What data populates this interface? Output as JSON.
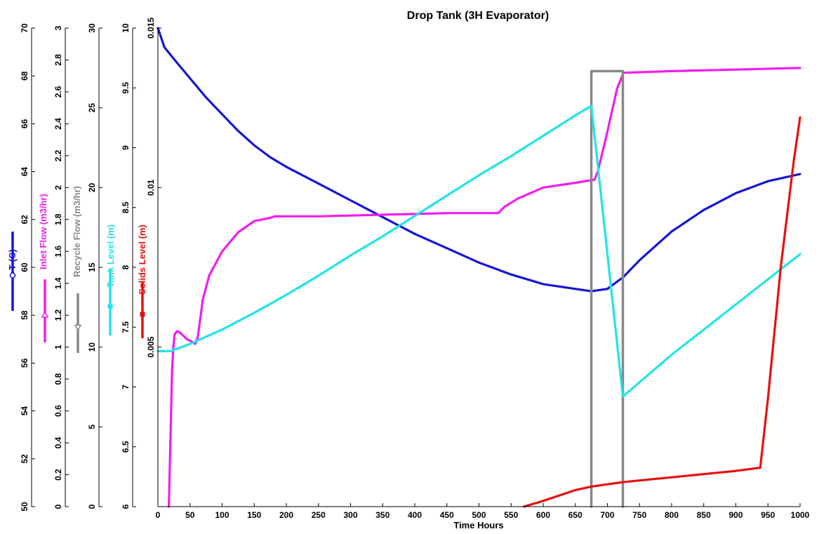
{
  "chart_data": {
    "type": "line",
    "title": "Drop Tank (3H Evaporator)",
    "xlabel": "Time Hours",
    "xlim": [
      0,
      1000
    ],
    "x_ticks": [
      0,
      50,
      100,
      150,
      200,
      250,
      300,
      350,
      400,
      450,
      500,
      550,
      600,
      650,
      700,
      750,
      800,
      850,
      900,
      950,
      1000
    ],
    "axes": [
      {
        "id": "temp",
        "label": "T (C)",
        "color": "#1515d6",
        "marker": "circle",
        "ylim": [
          50,
          70
        ],
        "ticks": [
          50,
          52,
          54,
          56,
          58,
          60,
          62,
          64,
          66,
          68,
          70
        ],
        "labels": [
          "50",
          "52",
          "54",
          "56",
          "58",
          "60",
          "62",
          "64",
          "66",
          "68",
          "70"
        ]
      },
      {
        "id": "inlet",
        "label": "Inlet Flow (m3/hr)",
        "color": "#f01df0",
        "marker": "triangle-up",
        "ylim": [
          0,
          3
        ],
        "ticks": [
          0,
          0.2,
          0.4,
          0.6,
          0.8,
          1,
          1.2,
          1.4,
          1.6,
          1.8,
          2,
          2.2,
          2.4,
          2.6,
          2.8,
          3
        ],
        "labels": [
          "0",
          "0.2",
          "0.4",
          "0.6",
          "0.8",
          "1",
          "1.2",
          "1.4",
          "1.6",
          "1.8",
          "2",
          "2.2",
          "2.4",
          "2.6",
          "2.8",
          "3"
        ]
      },
      {
        "id": "recycle",
        "label": "Recycle Flow (m3/hr)",
        "color": "#888888",
        "marker": "triangle-down",
        "ylim": [
          0,
          30
        ],
        "ticks": [
          0,
          5,
          10,
          15,
          20,
          25,
          30
        ],
        "labels": [
          "0",
          "5",
          "10",
          "15",
          "20",
          "25",
          "30"
        ]
      },
      {
        "id": "level",
        "label": "Tank Level (m)",
        "color": "#22e4e4",
        "marker": "diamond",
        "ylim": [
          6,
          10
        ],
        "ticks": [
          6,
          6.5,
          7,
          7.5,
          8,
          8.5,
          9,
          9.5,
          10
        ],
        "labels": [
          "6",
          "6.5",
          "7",
          "7.5",
          "8",
          "8.5",
          "9",
          "9.5",
          "10"
        ]
      },
      {
        "id": "solids",
        "label": "Solids Level (m)",
        "color": "#e81010",
        "marker": "square",
        "ylim": [
          0,
          0.015
        ],
        "ticks": [
          0.005,
          0.01,
          0.015
        ],
        "labels": [
          "0.005",
          "0.01",
          "0.015"
        ]
      }
    ],
    "series": [
      {
        "axis": "temp",
        "color": "#1515d6",
        "x": [
          0,
          10,
          25,
          50,
          75,
          100,
          125,
          150,
          175,
          200,
          250,
          300,
          350,
          400,
          450,
          500,
          550,
          600,
          650,
          675,
          700,
          725,
          750,
          800,
          850,
          900,
          950,
          1000
        ],
        "y": [
          70,
          69.2,
          68.7,
          67.9,
          67.1,
          66.4,
          65.7,
          65.1,
          64.6,
          64.2,
          63.5,
          62.8,
          62.1,
          61.4,
          60.8,
          60.2,
          59.7,
          59.3,
          59.1,
          59.0,
          59.1,
          59.6,
          60.3,
          61.5,
          62.4,
          63.1,
          63.6,
          63.9
        ]
      },
      {
        "axis": "inlet",
        "color": "#f01df0",
        "x": [
          17,
          20,
          22,
          24,
          26,
          30,
          35,
          40,
          45,
          50,
          55,
          58,
          62,
          70,
          80,
          100,
          125,
          150,
          175,
          182,
          250,
          350,
          450,
          530,
          540,
          560,
          600,
          650,
          680,
          685,
          700,
          715,
          725,
          800,
          900,
          1000
        ],
        "y": [
          0,
          0.5,
          0.85,
          1.0,
          1.08,
          1.1,
          1.09,
          1.07,
          1.05,
          1.04,
          1.03,
          1.02,
          1.06,
          1.3,
          1.45,
          1.6,
          1.72,
          1.79,
          1.81,
          1.82,
          1.82,
          1.83,
          1.84,
          1.84,
          1.88,
          1.93,
          2.0,
          2.03,
          2.05,
          2.1,
          2.35,
          2.62,
          2.72,
          2.73,
          2.74,
          2.75
        ]
      },
      {
        "axis": "recycle",
        "color": "#888888",
        "x": [
          675,
          675,
          724,
          724
        ],
        "y": [
          0,
          27.3,
          27.3,
          0
        ]
      },
      {
        "axis": "level",
        "color": "#22e4e4",
        "x": [
          0,
          20,
          50,
          100,
          150,
          200,
          250,
          300,
          350,
          400,
          450,
          500,
          550,
          600,
          650,
          675,
          724,
          800,
          850,
          900,
          950,
          1000
        ],
        "y": [
          7.3,
          7.3,
          7.36,
          7.48,
          7.62,
          7.77,
          7.93,
          8.1,
          8.26,
          8.43,
          8.6,
          8.77,
          8.93,
          9.1,
          9.27,
          9.35,
          6.92,
          7.27,
          7.48,
          7.69,
          7.9,
          8.11
        ]
      },
      {
        "axis": "solids",
        "color": "#e81010",
        "x": [
          570,
          600,
          650,
          675,
          700,
          725,
          750,
          800,
          850,
          900,
          938,
          950,
          970,
          990,
          1000
        ],
        "y": [
          0,
          0.00018,
          0.00052,
          0.00063,
          0.0007,
          0.00077,
          0.00082,
          0.00092,
          0.00102,
          0.00112,
          0.00122,
          0.0034,
          0.0075,
          0.0108,
          0.0122
        ]
      }
    ]
  }
}
